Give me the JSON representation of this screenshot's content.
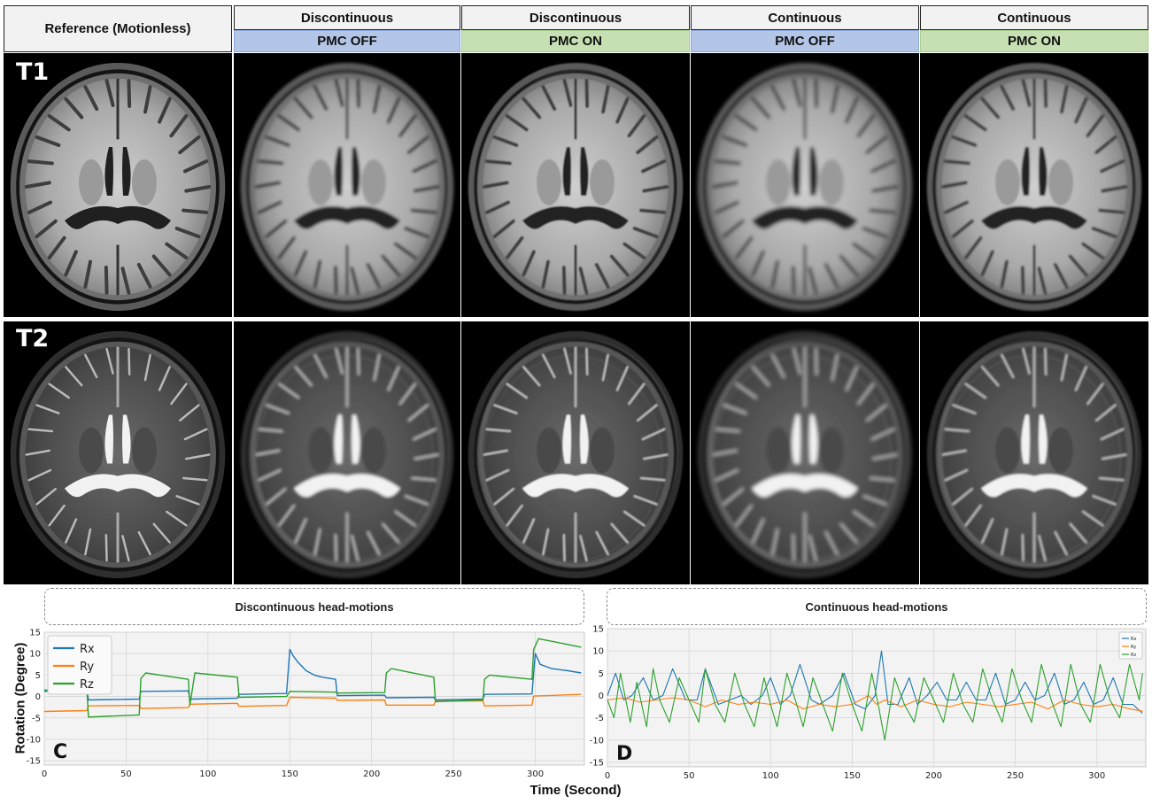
{
  "headers": {
    "reference": "Reference (Motionless)",
    "columns": [
      {
        "title": "Discontinuous",
        "pmc": "PMC OFF",
        "state": "off"
      },
      {
        "title": "Discontinuous",
        "pmc": "PMC ON",
        "state": "on"
      },
      {
        "title": "Continuous",
        "pmc": "PMC OFF",
        "state": "off"
      },
      {
        "title": "Continuous",
        "pmc": "PMC ON",
        "state": "on"
      }
    ]
  },
  "rows": [
    {
      "label": "T1",
      "contrast": "t1"
    },
    {
      "label": "T2",
      "contrast": "t2"
    }
  ],
  "colors": {
    "pmc_off": "#b4c6e7",
    "pmc_on": "#c6e0b4",
    "rx": "#1f77b4",
    "ry": "#ff7f0e",
    "rz": "#2ca02c"
  },
  "chart_data": [
    {
      "type": "line",
      "panel_letter": "C",
      "caption": "Discontinuous head-motions",
      "xlabel": "Time (Second)",
      "ylabel": "Rotation (Degree)",
      "xlim": [
        0,
        330
      ],
      "ylim": [
        -16,
        15
      ],
      "xticks": [
        0,
        50,
        100,
        150,
        200,
        250,
        300
      ],
      "yticks": [
        -15,
        -10,
        -5,
        0,
        5,
        10,
        15
      ],
      "grid": true,
      "legend": "top-left",
      "series": [
        {
          "name": "Rx",
          "x": [
            0,
            26,
            27,
            58,
            59,
            88,
            89,
            118,
            119,
            148,
            150,
            152,
            155,
            160,
            165,
            170,
            178,
            179,
            208,
            209,
            238,
            239,
            268,
            269,
            298,
            300,
            303,
            310,
            320,
            328
          ],
          "y": [
            1.2,
            1.5,
            -0.8,
            -0.6,
            1.2,
            1.3,
            -0.6,
            -0.4,
            0.5,
            0.7,
            11,
            9.5,
            8,
            6,
            5,
            4.5,
            4,
            0.2,
            0.3,
            -0.3,
            -0.2,
            -0.8,
            -0.6,
            0.5,
            0.6,
            10,
            7.5,
            6.5,
            6,
            5.5
          ]
        },
        {
          "name": "Ry",
          "x": [
            0,
            26,
            27,
            58,
            59,
            88,
            89,
            118,
            119,
            148,
            150,
            178,
            179,
            208,
            209,
            238,
            239,
            268,
            269,
            298,
            299,
            328
          ],
          "y": [
            -3.5,
            -3.3,
            -2.2,
            -2.1,
            -2.8,
            -2.6,
            -1.8,
            -1.6,
            -2.3,
            -2.1,
            -0.2,
            -0.4,
            -0.9,
            -0.8,
            -2.0,
            -2.0,
            -1.1,
            -1.0,
            -2.2,
            -2.0,
            0.1,
            0.5
          ]
        },
        {
          "name": "Rz",
          "x": [
            0,
            26,
            27,
            58,
            59,
            62,
            88,
            89,
            92,
            118,
            119,
            148,
            150,
            178,
            179,
            208,
            209,
            212,
            238,
            239,
            268,
            269,
            272,
            298,
            299,
            302,
            328
          ],
          "y": [
            1.5,
            1.8,
            -4.8,
            -4.3,
            4.2,
            5.5,
            4.0,
            -2.0,
            5.5,
            4.5,
            -0.2,
            0.0,
            1.2,
            1.0,
            0.8,
            0.9,
            5.5,
            6.5,
            4.5,
            -1.2,
            -0.8,
            4.0,
            5.0,
            4.0,
            11,
            13.5,
            11.5
          ]
        }
      ]
    },
    {
      "type": "line",
      "panel_letter": "D",
      "caption": "Continuous head-motions",
      "xlabel": "",
      "ylabel": "",
      "xlim": [
        0,
        330
      ],
      "ylim": [
        -16,
        15
      ],
      "xticks": [
        0,
        50,
        100,
        150,
        200,
        250,
        300
      ],
      "yticks": [
        -15,
        -10,
        -5,
        0,
        5,
        10,
        15
      ],
      "grid": true,
      "legend": "top-right",
      "series": [
        {
          "name": "Rx",
          "x": [
            0,
            5,
            10,
            15,
            22,
            28,
            34,
            40,
            48,
            55,
            60,
            68,
            75,
            82,
            88,
            95,
            100,
            106,
            112,
            118,
            125,
            130,
            138,
            145,
            152,
            158,
            164,
            168,
            172,
            178,
            185,
            190,
            196,
            202,
            208,
            214,
            220,
            226,
            232,
            238,
            244,
            250,
            256,
            262,
            268,
            274,
            280,
            286,
            292,
            298,
            304,
            310,
            316,
            322,
            328
          ],
          "y": [
            0,
            5,
            -1,
            0,
            4,
            -1,
            0,
            6,
            -1,
            -1,
            6,
            -2,
            -1,
            0,
            -2,
            0,
            4,
            -2,
            0,
            7,
            -1,
            -2,
            0,
            5,
            -2,
            -3,
            0,
            10,
            -2,
            -2,
            4,
            -2,
            0,
            3,
            -1,
            -1,
            3,
            -1,
            -1,
            5,
            -2,
            -1,
            3,
            -1,
            0,
            5,
            -2,
            -1,
            3,
            -2,
            -1,
            4,
            -2,
            -2,
            -4
          ]
        },
        {
          "name": "Ry",
          "x": [
            0,
            10,
            20,
            30,
            40,
            50,
            60,
            70,
            80,
            90,
            100,
            110,
            120,
            130,
            140,
            150,
            160,
            165,
            170,
            180,
            190,
            200,
            210,
            220,
            230,
            240,
            250,
            260,
            270,
            280,
            290,
            300,
            310,
            320,
            328
          ],
          "y": [
            -1,
            -0.5,
            -1.5,
            -1,
            -0.5,
            -1,
            -2.5,
            -1,
            -2,
            -1.5,
            -2,
            -1,
            -3,
            -2,
            -2.5,
            -2,
            0,
            -2,
            -1,
            -2.5,
            -1,
            -2,
            -2.5,
            -1.5,
            -2,
            -2.5,
            -2,
            -1.5,
            -3,
            -1,
            -2,
            -2.5,
            -2,
            -3,
            -3.5
          ]
        },
        {
          "name": "Rz",
          "x": [
            0,
            4,
            8,
            14,
            18,
            24,
            28,
            32,
            38,
            44,
            50,
            56,
            60,
            66,
            72,
            78,
            84,
            90,
            96,
            100,
            104,
            110,
            116,
            120,
            126,
            132,
            138,
            144,
            150,
            156,
            162,
            166,
            170,
            176,
            182,
            188,
            194,
            200,
            206,
            212,
            218,
            224,
            230,
            236,
            242,
            248,
            254,
            260,
            266,
            272,
            278,
            284,
            290,
            296,
            302,
            308,
            314,
            320,
            326,
            328
          ],
          "y": [
            -1,
            -5,
            5,
            -6,
            3,
            -7,
            6,
            -1,
            -6,
            4,
            -1,
            -6,
            6,
            -2,
            -6,
            5,
            -2,
            -7,
            4,
            -2,
            -7,
            5,
            -2,
            -7,
            4,
            -2,
            -8,
            5,
            -2,
            -8,
            5,
            -2,
            -10,
            4,
            -2,
            -6,
            4,
            -1,
            -6,
            5,
            -2,
            -6,
            6,
            -1,
            -6,
            6,
            -1,
            -6,
            7,
            -1,
            -7,
            7,
            -2,
            -6,
            7,
            -1,
            -5,
            7,
            -1,
            5
          ]
        }
      ]
    }
  ]
}
